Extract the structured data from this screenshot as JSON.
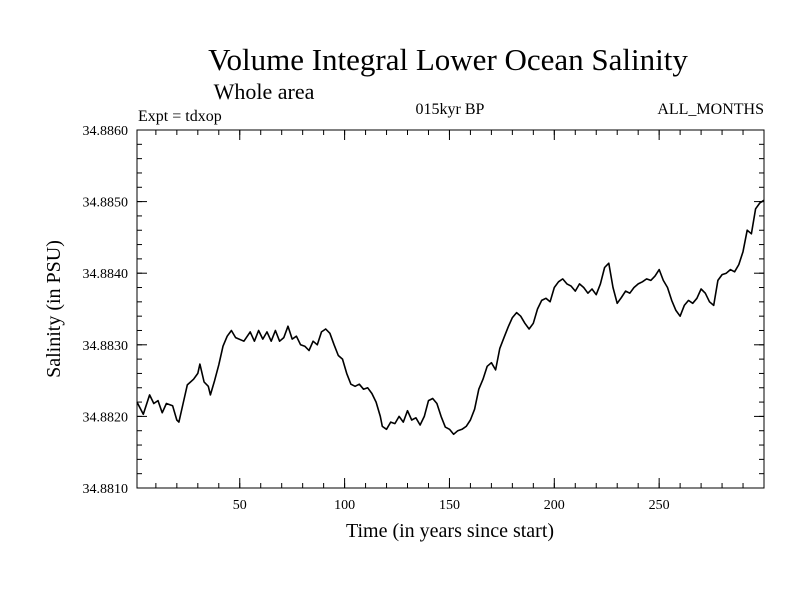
{
  "chart_data": {
    "type": "line",
    "title": "Volume Integral Lower Ocean Salinity",
    "subtitle": "Whole area",
    "annotations": {
      "experiment": "Expt = tdxop",
      "period": "015kyr BP",
      "months": "ALL_MONTHS"
    },
    "xlabel": "Time (in years since start)",
    "ylabel": "Salinity (in PSU)",
    "xlim": [
      1,
      300
    ],
    "ylim": [
      34.881,
      34.886
    ],
    "x_ticks": [
      50,
      100,
      150,
      200,
      250
    ],
    "y_ticks": [
      34.881,
      34.882,
      34.883,
      34.884,
      34.885,
      34.886
    ],
    "y_tick_labels": [
      "34.8810",
      "34.8820",
      "34.8830",
      "34.8840",
      "34.8850",
      "34.8860"
    ],
    "grid": false,
    "series": [
      {
        "color": "#000000",
        "points": [
          [
            1,
            34.8822
          ],
          [
            4,
            34.88203
          ],
          [
            7,
            34.8823
          ],
          [
            9,
            34.88218
          ],
          [
            11,
            34.88222
          ],
          [
            13,
            34.88205
          ],
          [
            15,
            34.88218
          ],
          [
            18,
            34.88215
          ],
          [
            20,
            34.88195
          ],
          [
            21,
            34.88192
          ],
          [
            23,
            34.88218
          ],
          [
            25,
            34.88244
          ],
          [
            28,
            34.88252
          ],
          [
            30,
            34.8826
          ],
          [
            31,
            34.88273
          ],
          [
            33,
            34.88248
          ],
          [
            35,
            34.88242
          ],
          [
            36,
            34.8823
          ],
          [
            38,
            34.8825
          ],
          [
            40,
            34.88272
          ],
          [
            42,
            34.88298
          ],
          [
            44,
            34.88312
          ],
          [
            46,
            34.8832
          ],
          [
            48,
            34.8831
          ],
          [
            52,
            34.88305
          ],
          [
            55,
            34.88318
          ],
          [
            57,
            34.88305
          ],
          [
            59,
            34.8832
          ],
          [
            61,
            34.88308
          ],
          [
            63,
            34.88318
          ],
          [
            65,
            34.88305
          ],
          [
            67,
            34.8832
          ],
          [
            69,
            34.88305
          ],
          [
            71,
            34.8831
          ],
          [
            73,
            34.88326
          ],
          [
            75,
            34.88308
          ],
          [
            77,
            34.88312
          ],
          [
            79,
            34.883
          ],
          [
            81,
            34.88298
          ],
          [
            83,
            34.88292
          ],
          [
            85,
            34.88305
          ],
          [
            87,
            34.883
          ],
          [
            89,
            34.88318
          ],
          [
            91,
            34.88322
          ],
          [
            93,
            34.88316
          ],
          [
            95,
            34.883
          ],
          [
            97,
            34.88285
          ],
          [
            99,
            34.8828
          ],
          [
            101,
            34.8826
          ],
          [
            103,
            34.88245
          ],
          [
            105,
            34.88242
          ],
          [
            107,
            34.88245
          ],
          [
            109,
            34.88238
          ],
          [
            111,
            34.8824
          ],
          [
            113,
            34.88232
          ],
          [
            115,
            34.8822
          ],
          [
            117,
            34.882
          ],
          [
            118,
            34.88186
          ],
          [
            120,
            34.88182
          ],
          [
            122,
            34.88192
          ],
          [
            124,
            34.8819
          ],
          [
            126,
            34.882
          ],
          [
            128,
            34.88192
          ],
          [
            130,
            34.88208
          ],
          [
            132,
            34.88195
          ],
          [
            134,
            34.88198
          ],
          [
            136,
            34.88188
          ],
          [
            138,
            34.882
          ],
          [
            140,
            34.88222
          ],
          [
            142,
            34.88225
          ],
          [
            144,
            34.88218
          ],
          [
            146,
            34.882
          ],
          [
            148,
            34.88185
          ],
          [
            150,
            34.88182
          ],
          [
            152,
            34.88175
          ],
          [
            154,
            34.8818
          ],
          [
            156,
            34.88182
          ],
          [
            158,
            34.88186
          ],
          [
            160,
            34.88195
          ],
          [
            162,
            34.8821
          ],
          [
            164,
            34.88238
          ],
          [
            166,
            34.88252
          ],
          [
            168,
            34.8827
          ],
          [
            170,
            34.88275
          ],
          [
            172,
            34.88265
          ],
          [
            174,
            34.88295
          ],
          [
            176,
            34.8831
          ],
          [
            178,
            34.88325
          ],
          [
            180,
            34.88338
          ],
          [
            182,
            34.88345
          ],
          [
            184,
            34.8834
          ],
          [
            186,
            34.8833
          ],
          [
            188,
            34.88322
          ],
          [
            190,
            34.8833
          ],
          [
            192,
            34.8835
          ],
          [
            194,
            34.88362
          ],
          [
            196,
            34.88365
          ],
          [
            198,
            34.8836
          ],
          [
            200,
            34.8838
          ],
          [
            202,
            34.88388
          ],
          [
            204,
            34.88392
          ],
          [
            206,
            34.88385
          ],
          [
            208,
            34.88382
          ],
          [
            210,
            34.88375
          ],
          [
            212,
            34.88385
          ],
          [
            214,
            34.8838
          ],
          [
            216,
            34.88372
          ],
          [
            218,
            34.88378
          ],
          [
            220,
            34.8837
          ],
          [
            222,
            34.88385
          ],
          [
            224,
            34.88408
          ],
          [
            226,
            34.88414
          ],
          [
            228,
            34.8838
          ],
          [
            230,
            34.88358
          ],
          [
            232,
            34.88366
          ],
          [
            234,
            34.88375
          ],
          [
            236,
            34.88372
          ],
          [
            238,
            34.8838
          ],
          [
            240,
            34.88385
          ],
          [
            242,
            34.88388
          ],
          [
            244,
            34.88392
          ],
          [
            246,
            34.8839
          ],
          [
            248,
            34.88396
          ],
          [
            250,
            34.88405
          ],
          [
            252,
            34.8839
          ],
          [
            254,
            34.8838
          ],
          [
            256,
            34.88362
          ],
          [
            258,
            34.88348
          ],
          [
            260,
            34.8834
          ],
          [
            262,
            34.88355
          ],
          [
            264,
            34.88362
          ],
          [
            266,
            34.88358
          ],
          [
            268,
            34.88365
          ],
          [
            270,
            34.88378
          ],
          [
            272,
            34.88372
          ],
          [
            274,
            34.8836
          ],
          [
            276,
            34.88355
          ],
          [
            278,
            34.8839
          ],
          [
            280,
            34.88398
          ],
          [
            282,
            34.884
          ],
          [
            284,
            34.88405
          ],
          [
            286,
            34.88402
          ],
          [
            288,
            34.88412
          ],
          [
            290,
            34.8843
          ],
          [
            292,
            34.8846
          ],
          [
            294,
            34.88455
          ],
          [
            296,
            34.8849
          ],
          [
            298,
            34.88498
          ],
          [
            300,
            34.88502
          ]
        ]
      }
    ]
  }
}
